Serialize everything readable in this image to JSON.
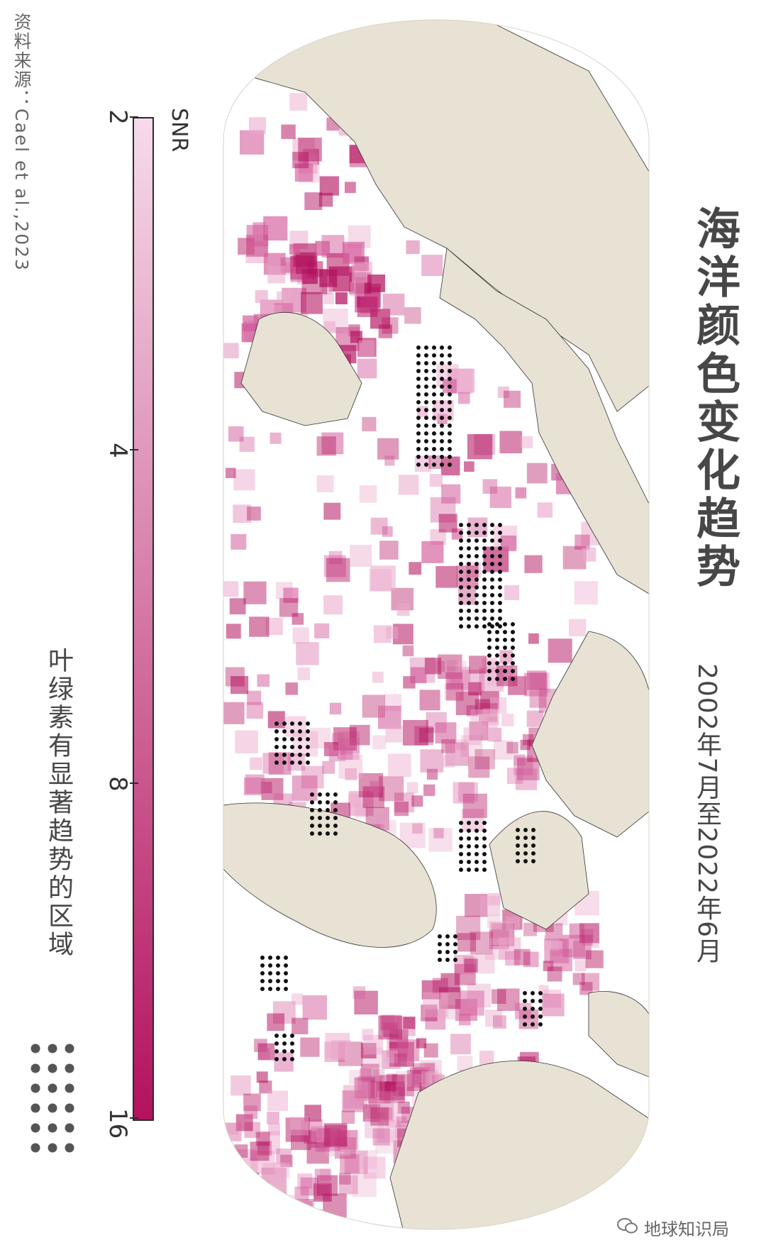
{
  "source": "资料来源：Cael et al.,2023",
  "title": "海洋颜色变化趋势",
  "subtitle": "2002年7月至2022年6月",
  "legend": {
    "colorbar_label": "SNR",
    "ticks": [
      "2",
      "4",
      "8",
      "16"
    ],
    "tick_values": [
      2,
      4,
      8,
      16
    ],
    "scale": "log",
    "color_low": "#f6dbea",
    "color_high": "#b3125f",
    "dots_label": "叶绿素有显著趋势的区域"
  },
  "colors": {
    "land": "#e8e2d4",
    "ocean_no_data": "#ffffff",
    "dots": "#1a1a1a"
  },
  "watermark": "地球知识局"
}
